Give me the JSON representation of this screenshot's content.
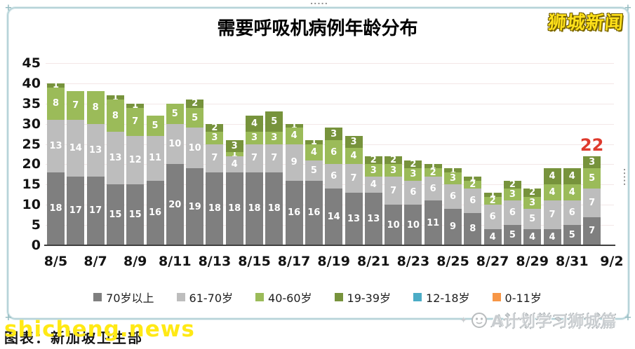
{
  "window": {
    "title": "需要呼吸机病例年龄分布",
    "brand": "狮城新闻",
    "watermark": "shicheng.news",
    "caption": "图表：新加坡卫生部",
    "footer_logo_text": "A计划学习狮城篇"
  },
  "colors": {
    "annotation_red": "#de3a2d",
    "brand_yellow": "#ffe11a",
    "watermark_yellow": "#ffe915",
    "frame_blue": "#b7d4d9",
    "gridline": "#f3e7e7",
    "axis_text": "#141414",
    "bar_label_text": "#ffffff"
  },
  "chart_data": {
    "type": "bar",
    "stacked": true,
    "title": "需要呼吸机病例年龄分布",
    "xlabel": "",
    "ylabel": "",
    "ylim": [
      0,
      45
    ],
    "ytick_step": 5,
    "y_ticks": [
      0,
      5,
      10,
      15,
      20,
      25,
      30,
      35,
      40,
      45
    ],
    "grid": true,
    "legend_position": "bottom",
    "categories": [
      "8/5",
      "8/6",
      "8/7",
      "8/8",
      "8/9",
      "8/10",
      "8/11",
      "8/12",
      "8/13",
      "8/14",
      "8/15",
      "8/16",
      "8/17",
      "8/18",
      "8/19",
      "8/20",
      "8/21",
      "8/22",
      "8/23",
      "8/24",
      "8/25",
      "8/26",
      "8/27",
      "8/28",
      "8/29",
      "8/30",
      "8/31",
      "9/1"
    ],
    "x_tick_labels": [
      "8/5",
      "8/7",
      "8/9",
      "8/11",
      "8/13",
      "8/15",
      "8/17",
      "8/19",
      "8/21",
      "8/23",
      "8/25",
      "8/27",
      "8/29",
      "8/31",
      "9/2"
    ],
    "series": [
      {
        "name": "70岁以上",
        "color": "#7f7f7f",
        "values": [
          18,
          17,
          17,
          15,
          15,
          16,
          20,
          19,
          18,
          18,
          18,
          18,
          16,
          16,
          14,
          13,
          13,
          10,
          10,
          11,
          9,
          8,
          4,
          5,
          4,
          4,
          5,
          7
        ]
      },
      {
        "name": "61-70岁",
        "color": "#bdbdbd",
        "values": [
          13,
          14,
          13,
          13,
          12,
          11,
          10,
          10,
          7,
          4,
          7,
          7,
          9,
          5,
          6,
          7,
          4,
          7,
          6,
          6,
          6,
          6,
          6,
          6,
          5,
          7,
          6,
          7
        ]
      },
      {
        "name": "40-60岁",
        "color": "#9bbb59",
        "values": [
          8,
          7,
          8,
          8,
          7,
          5,
          5,
          5,
          3,
          1,
          3,
          3,
          4,
          4,
          6,
          4,
          3,
          3,
          3,
          2,
          3,
          2,
          2,
          3,
          3,
          4,
          4,
          5
        ]
      },
      {
        "name": "19-39岁",
        "color": "#77933c",
        "values": [
          1,
          0,
          0,
          1,
          1,
          0,
          0,
          2,
          2,
          3,
          4,
          5,
          1,
          1,
          3,
          3,
          2,
          2,
          2,
          1,
          1,
          1,
          1,
          2,
          2,
          4,
          4,
          3
        ]
      },
      {
        "name": "12-18岁",
        "color": "#4bacc6",
        "values": [
          0,
          0,
          0,
          0,
          0,
          0,
          0,
          0,
          0,
          0,
          0,
          0,
          0,
          0,
          0,
          0,
          0,
          0,
          0,
          0,
          0,
          0,
          0,
          0,
          0,
          0,
          0,
          0
        ]
      },
      {
        "name": "0-11岁",
        "color": "#f79646",
        "values": [
          0,
          0,
          0,
          0,
          0,
          0,
          0,
          0,
          0,
          0,
          0,
          0,
          0,
          0,
          0,
          0,
          0,
          0,
          0,
          0,
          0,
          0,
          0,
          0,
          0,
          0,
          0,
          0
        ]
      }
    ],
    "annotation": {
      "text": "22",
      "color": "#de3a2d",
      "bar_index": 27
    }
  }
}
